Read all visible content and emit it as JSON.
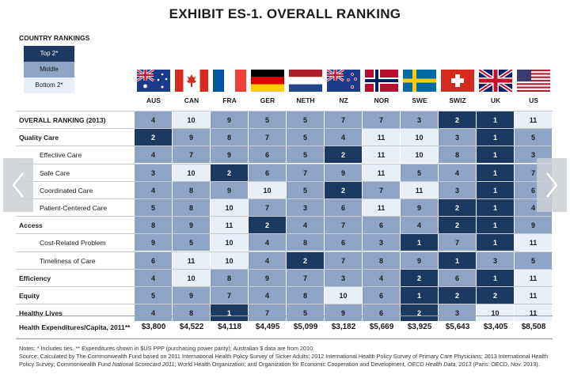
{
  "title": "EXHIBIT ES-1. OVERALL RANKING",
  "legend_title": "COUNTRY RANKINGS",
  "legend": [
    {
      "label": "Top 2*",
      "color": "#1b3a61",
      "text": "#ffffff"
    },
    {
      "label": "Middle",
      "color": "#8ea3c6",
      "text": "#1b1b1b"
    },
    {
      "label": "Bottom 2*",
      "color": "#e8eff8",
      "text": "#1b1b1b"
    }
  ],
  "colors": {
    "top": "#1b3a61",
    "middle": "#8ea3c6",
    "bottom": "#e8eff8"
  },
  "chart_data": {
    "type": "table",
    "title": "EXHIBIT ES-1. OVERALL RANKING",
    "columns": [
      "AUS",
      "CAN",
      "FRA",
      "GER",
      "NETH",
      "NZ",
      "NOR",
      "SWE",
      "SWIZ",
      "UK",
      "US"
    ],
    "rows": [
      {
        "label": "OVERALL RANKING (2013)",
        "style": "bold",
        "values": [
          4,
          10,
          9,
          5,
          5,
          7,
          7,
          3,
          2,
          1,
          11
        ]
      },
      {
        "label": "Quality Care",
        "style": "bold",
        "values": [
          2,
          9,
          8,
          7,
          5,
          4,
          11,
          10,
          3,
          1,
          5
        ]
      },
      {
        "label": "Effective Care",
        "style": "indent",
        "values": [
          4,
          7,
          9,
          6,
          5,
          2,
          11,
          10,
          8,
          1,
          3
        ]
      },
      {
        "label": "Safe Care",
        "style": "indent",
        "values": [
          3,
          10,
          2,
          6,
          7,
          9,
          11,
          5,
          4,
          1,
          7
        ]
      },
      {
        "label": "Coordinated Care",
        "style": "indent",
        "values": [
          4,
          8,
          9,
          10,
          5,
          2,
          7,
          11,
          3,
          1,
          6
        ]
      },
      {
        "label": "Patient-Centered Care",
        "style": "indent",
        "values": [
          5,
          8,
          10,
          7,
          3,
          6,
          11,
          9,
          2,
          1,
          4
        ]
      },
      {
        "label": "Access",
        "style": "bold",
        "values": [
          8,
          9,
          11,
          2,
          4,
          7,
          6,
          4,
          2,
          1,
          9
        ]
      },
      {
        "label": "Cost-Related Problem",
        "style": "indent",
        "values": [
          9,
          5,
          10,
          4,
          8,
          6,
          3,
          1,
          7,
          1,
          11
        ]
      },
      {
        "label": "Timeliness of Care",
        "style": "indent",
        "values": [
          6,
          11,
          10,
          4,
          2,
          7,
          8,
          9,
          1,
          3,
          5
        ]
      },
      {
        "label": "Efficiency",
        "style": "bold",
        "values": [
          4,
          10,
          8,
          9,
          7,
          3,
          4,
          2,
          6,
          1,
          11
        ]
      },
      {
        "label": "Equity",
        "style": "bold",
        "values": [
          5,
          9,
          7,
          4,
          8,
          10,
          6,
          1,
          2,
          2,
          11
        ]
      },
      {
        "label": "Healthy Lives",
        "style": "bold",
        "values": [
          4,
          8,
          1,
          7,
          5,
          9,
          6,
          2,
          3,
          10,
          11
        ]
      }
    ],
    "footer_row": {
      "label": "Health Expenditures/Capita, 2011**",
      "values": [
        "$3,800",
        "$4,522",
        "$4,118",
        "$4,495",
        "$5,099",
        "$3,182",
        "$5,669",
        "$3,925",
        "$5,643",
        "$3,405",
        "$8,508"
      ]
    },
    "cell_colors": [
      [
        "m",
        "b",
        "m",
        "m",
        "m",
        "m",
        "m",
        "m",
        "t",
        "t",
        "b"
      ],
      [
        "t",
        "m",
        "m",
        "m",
        "m",
        "m",
        "b",
        "b",
        "m",
        "t",
        "m"
      ],
      [
        "m",
        "m",
        "m",
        "m",
        "m",
        "t",
        "b",
        "b",
        "m",
        "t",
        "m"
      ],
      [
        "m",
        "b",
        "t",
        "m",
        "m",
        "m",
        "b",
        "m",
        "m",
        "t",
        "m"
      ],
      [
        "m",
        "m",
        "m",
        "b",
        "m",
        "t",
        "m",
        "b",
        "m",
        "t",
        "m"
      ],
      [
        "m",
        "m",
        "b",
        "m",
        "m",
        "m",
        "b",
        "m",
        "t",
        "t",
        "m"
      ],
      [
        "m",
        "m",
        "b",
        "t",
        "m",
        "m",
        "m",
        "m",
        "t",
        "t",
        "m"
      ],
      [
        "m",
        "m",
        "b",
        "m",
        "m",
        "m",
        "m",
        "t",
        "m",
        "t",
        "b"
      ],
      [
        "m",
        "b",
        "b",
        "m",
        "t",
        "m",
        "m",
        "m",
        "t",
        "m",
        "m"
      ],
      [
        "m",
        "b",
        "m",
        "m",
        "m",
        "m",
        "m",
        "t",
        "m",
        "t",
        "b"
      ],
      [
        "m",
        "m",
        "m",
        "m",
        "m",
        "b",
        "m",
        "t",
        "t",
        "t",
        "b"
      ],
      [
        "m",
        "m",
        "t",
        "m",
        "m",
        "m",
        "m",
        "t",
        "m",
        "b",
        "b"
      ]
    ]
  },
  "notes": {
    "line1": "Notes: * Includes ties. ** Expenditures shown in $US PPP (purchasing power parity); Australian $ data are from 2010.",
    "line2_a": "Source: Calculated by The Commonwealth Fund based on 2011 International Health Policy Survey of Sicker Adults; 2012 International Health Policy Survey of Primary Care Physicians; 2013 International Health",
    "line3_a": "Policy Survey; Commonwealth Fund ",
    "line3_b": "National Scorecard 2011",
    "line3_c": "; World Health Organization; and Organization for Economic Cooperation and Development, ",
    "line3_d": "OECD Health Data, 2013",
    "line3_e": " (Paris: OECD, Nov. 2013)."
  },
  "nav": {
    "prev_icon": "chevron-left-icon",
    "next_icon": "chevron-right-icon"
  }
}
